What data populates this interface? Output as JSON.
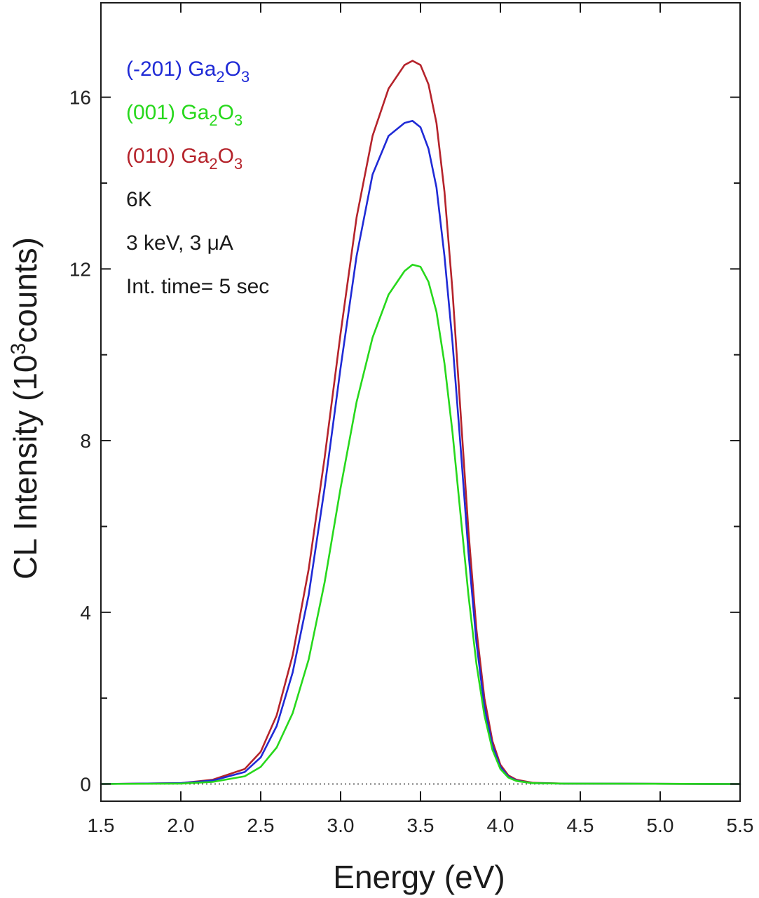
{
  "chart_data": {
    "type": "line",
    "xlabel": "Energy (eV)",
    "ylabel_main": "CL Intensity (10",
    "ylabel_sup": "3",
    "ylabel_tail": "counts)",
    "xlim": [
      1.5,
      5.5
    ],
    "ylim": [
      -0.4,
      18.2
    ],
    "x_ticks": [
      1.5,
      2.0,
      2.5,
      3.0,
      3.5,
      4.0,
      4.5,
      5.0,
      5.5
    ],
    "x_tick_labels": [
      "1.5",
      "2.0",
      "2.5",
      "3.0",
      "3.5",
      "4.0",
      "4.5",
      "5.0",
      "5.5"
    ],
    "y_ticks": [
      0,
      4,
      8,
      12,
      16
    ],
    "y_tick_labels": [
      "0",
      "4",
      "8",
      "12",
      "16"
    ],
    "y_minor_ticks": [
      2,
      6,
      10,
      14
    ],
    "zero_line": true,
    "series": [
      {
        "name": "(010) Ga2O3",
        "prefix": "(010) Ga",
        "sub1": "2",
        "mid": "O",
        "sub2": "3",
        "color": "#b5232b",
        "x": [
          1.5,
          2.0,
          2.2,
          2.4,
          2.5,
          2.6,
          2.7,
          2.8,
          2.9,
          3.0,
          3.1,
          3.2,
          3.3,
          3.4,
          3.45,
          3.5,
          3.55,
          3.6,
          3.65,
          3.7,
          3.75,
          3.8,
          3.85,
          3.9,
          3.95,
          4.0,
          4.05,
          4.1,
          4.2,
          4.4,
          5.5
        ],
        "y": [
          0,
          0.02,
          0.1,
          0.35,
          0.75,
          1.6,
          3.0,
          5.0,
          7.6,
          10.5,
          13.2,
          15.1,
          16.2,
          16.75,
          16.85,
          16.75,
          16.3,
          15.4,
          13.8,
          11.5,
          8.7,
          5.9,
          3.6,
          2.0,
          1.0,
          0.45,
          0.2,
          0.1,
          0.03,
          0.01,
          0
        ]
      },
      {
        "name": "(-201) Ga2O3",
        "prefix": "(-201) Ga",
        "sub1": "2",
        "mid": "O",
        "sub2": "3",
        "color": "#1f2ad6",
        "x": [
          1.5,
          2.0,
          2.2,
          2.4,
          2.5,
          2.6,
          2.7,
          2.8,
          2.9,
          3.0,
          3.1,
          3.2,
          3.3,
          3.4,
          3.45,
          3.5,
          3.55,
          3.6,
          3.65,
          3.7,
          3.75,
          3.8,
          3.85,
          3.9,
          3.95,
          4.0,
          4.05,
          4.1,
          4.2,
          4.4,
          5.5
        ],
        "y": [
          0,
          0.02,
          0.08,
          0.28,
          0.62,
          1.35,
          2.6,
          4.4,
          6.9,
          9.7,
          12.3,
          14.2,
          15.1,
          15.4,
          15.45,
          15.3,
          14.8,
          13.9,
          12.3,
          10.3,
          7.9,
          5.4,
          3.3,
          1.8,
          0.9,
          0.4,
          0.17,
          0.08,
          0.02,
          0.01,
          0
        ]
      },
      {
        "name": "(001) Ga2O3",
        "prefix": "(001) Ga",
        "sub1": "2",
        "mid": "O",
        "sub2": "3",
        "color": "#27d81c",
        "x": [
          1.5,
          2.0,
          2.2,
          2.4,
          2.5,
          2.6,
          2.7,
          2.8,
          2.9,
          3.0,
          3.1,
          3.2,
          3.3,
          3.4,
          3.45,
          3.5,
          3.55,
          3.6,
          3.65,
          3.7,
          3.75,
          3.8,
          3.85,
          3.9,
          3.95,
          4.0,
          4.05,
          4.1,
          4.2,
          4.4,
          5.5
        ],
        "y": [
          0,
          0.01,
          0.05,
          0.18,
          0.4,
          0.85,
          1.65,
          2.9,
          4.7,
          6.9,
          8.9,
          10.4,
          11.4,
          11.95,
          12.1,
          12.05,
          11.7,
          11.0,
          9.8,
          8.2,
          6.3,
          4.4,
          2.8,
          1.6,
          0.8,
          0.35,
          0.15,
          0.07,
          0.02,
          0.01,
          0
        ]
      }
    ],
    "legend_order": [
      1,
      2,
      0
    ],
    "annotations": [
      "6K",
      "3 keV, 3 μA",
      "Int. time= 5 sec"
    ],
    "annotation_color": "#1a1a1a"
  }
}
